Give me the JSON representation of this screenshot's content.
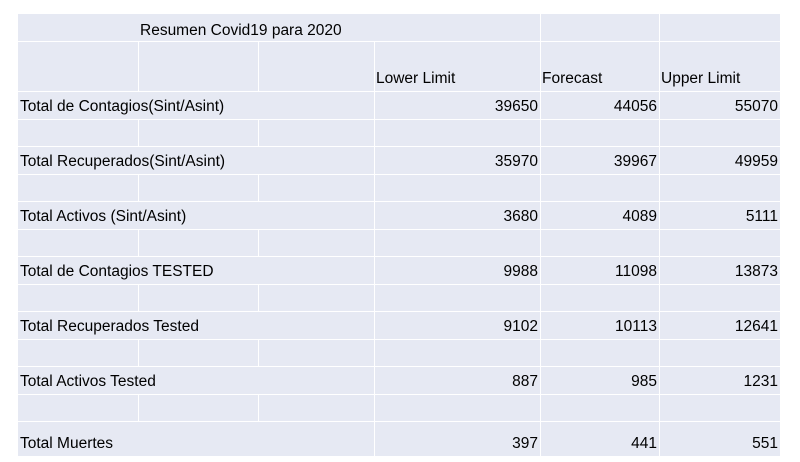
{
  "title": "Resumen Covid19 para 2020",
  "headers": [
    "Lower Limit",
    "Forecast",
    "Upper Limit"
  ],
  "rows": [
    {
      "label": "Total de Contagios(Sint/Asint)",
      "values": [
        "39650",
        "44056",
        "55070"
      ]
    },
    {
      "label": "Total Recuperados(Sint/Asint)",
      "values": [
        "35970",
        "39967",
        "49959"
      ]
    },
    {
      "label": "Total Activos (Sint/Asint)",
      "values": [
        "3680",
        "4089",
        "5111"
      ]
    },
    {
      "label": "Total de Contagios TESTED",
      "values": [
        "9988",
        "11098",
        "13873"
      ]
    },
    {
      "label": "Total Recuperados Tested",
      "values": [
        "9102",
        "10113",
        "12641"
      ]
    },
    {
      "label": "Total Activos Tested",
      "values": [
        "887",
        "985",
        "1231"
      ]
    },
    {
      "label": "Total Muertes",
      "values": [
        "397",
        "441",
        "551"
      ]
    }
  ]
}
